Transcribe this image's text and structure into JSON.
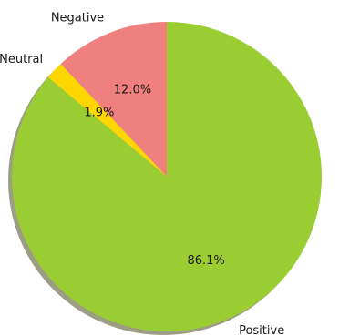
{
  "chart_data": {
    "type": "pie",
    "title": "",
    "start_angle_deg": 90,
    "direction": "counterclockwise",
    "shadow": true,
    "slices": [
      {
        "label": "Negative",
        "value": 12.0,
        "percent_label": "12.0%",
        "color": "#f08080"
      },
      {
        "label": "Neutral",
        "value": 1.9,
        "percent_label": "1.9%",
        "color": "#ffd700"
      },
      {
        "label": "Positive",
        "value": 86.1,
        "percent_label": "86.1%",
        "color": "#9acd32"
      }
    ]
  }
}
